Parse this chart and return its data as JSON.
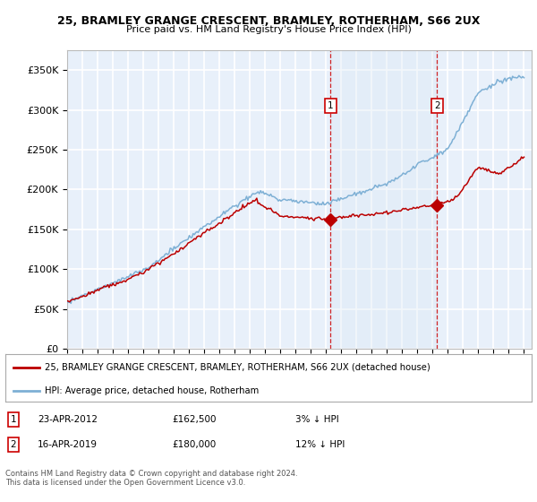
{
  "title": "25, BRAMLEY GRANGE CRESCENT, BRAMLEY, ROTHERHAM, S66 2UX",
  "subtitle": "Price paid vs. HM Land Registry's House Price Index (HPI)",
  "ylabel_ticks": [
    "£0",
    "£50K",
    "£100K",
    "£150K",
    "£200K",
    "£250K",
    "£300K",
    "£350K"
  ],
  "ytick_values": [
    0,
    50000,
    100000,
    150000,
    200000,
    250000,
    300000,
    350000
  ],
  "ylim": [
    0,
    375000
  ],
  "xlim_start": 1995,
  "xlim_end": 2025.5,
  "background_color": "#e8f0fa",
  "fig_bg_color": "#ffffff",
  "red_line_color": "#bb0000",
  "blue_line_color": "#7eb0d5",
  "grid_color": "#ffffff",
  "shade_color": "#dce9f5",
  "sale1_date": 2012.3,
  "sale1_price": 162500,
  "sale2_date": 2019.3,
  "sale2_price": 180000,
  "legend_label_red": "25, BRAMLEY GRANGE CRESCENT, BRAMLEY, ROTHERHAM, S66 2UX (detached house)",
  "legend_label_blue": "HPI: Average price, detached house, Rotherham",
  "annotation1_date": "23-APR-2012",
  "annotation1_price": "£162,500",
  "annotation1_hpi": "3% ↓ HPI",
  "annotation2_date": "16-APR-2019",
  "annotation2_price": "£180,000",
  "annotation2_hpi": "12% ↓ HPI",
  "footer": "Contains HM Land Registry data © Crown copyright and database right 2024.\nThis data is licensed under the Open Government Licence v3.0."
}
